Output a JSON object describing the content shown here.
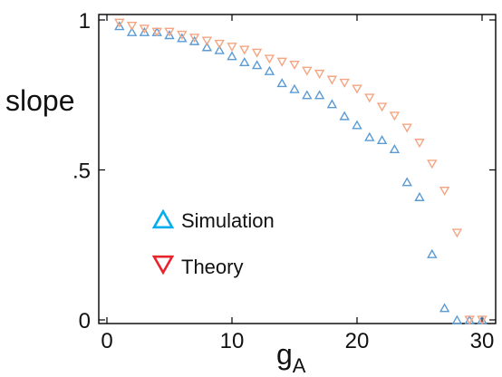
{
  "chart_data": {
    "type": "scatter",
    "ylabel": "slope",
    "xlabel_main": "g",
    "xlabel_sub": "A",
    "xlim": [
      0,
      31
    ],
    "ylim": [
      0,
      1
    ],
    "xticks": [
      0,
      10,
      20,
      30
    ],
    "xtick_labels": [
      "0",
      "10",
      "20",
      "30"
    ],
    "yticks": [
      0,
      0.5,
      1
    ],
    "ytick_labels": [
      "0",
      ".5",
      "1"
    ],
    "grid": false,
    "legend_placement": "center-left",
    "series": [
      {
        "name": "Simulation",
        "marker": "triangle-up",
        "color": "#5B9BD5",
        "legend_color": "#00AEEF",
        "x": [
          1,
          2,
          3,
          4,
          5,
          6,
          7,
          8,
          9,
          10,
          11,
          12,
          13,
          14,
          15,
          16,
          17,
          18,
          19,
          20,
          21,
          22,
          23,
          24,
          25,
          26,
          27,
          28,
          29,
          30
        ],
        "y": [
          0.98,
          0.96,
          0.96,
          0.96,
          0.95,
          0.94,
          0.93,
          0.91,
          0.9,
          0.88,
          0.86,
          0.85,
          0.83,
          0.79,
          0.77,
          0.75,
          0.75,
          0.72,
          0.68,
          0.65,
          0.61,
          0.6,
          0.57,
          0.46,
          0.41,
          0.22,
          0.04,
          0.0,
          0.0,
          0.0
        ]
      },
      {
        "name": "Theory",
        "marker": "triangle-down",
        "color": "#F4A582",
        "legend_color": "#E8232B",
        "x": [
          1,
          2,
          3,
          4,
          5,
          6,
          7,
          8,
          9,
          10,
          11,
          12,
          13,
          14,
          15,
          16,
          17,
          18,
          19,
          20,
          21,
          22,
          23,
          24,
          25,
          26,
          27,
          28,
          29,
          30
        ],
        "y": [
          0.99,
          0.98,
          0.97,
          0.96,
          0.96,
          0.95,
          0.94,
          0.93,
          0.92,
          0.91,
          0.9,
          0.89,
          0.87,
          0.86,
          0.85,
          0.83,
          0.82,
          0.8,
          0.79,
          0.77,
          0.74,
          0.71,
          0.68,
          0.64,
          0.59,
          0.52,
          0.43,
          0.29,
          0.0,
          0.0
        ]
      }
    ]
  }
}
